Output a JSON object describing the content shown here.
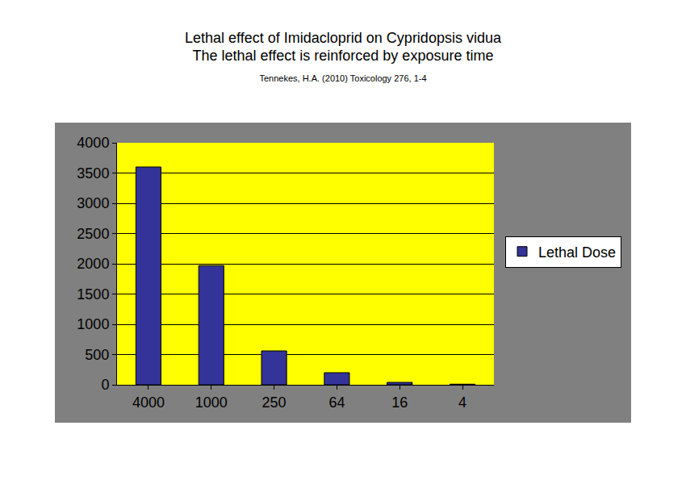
{
  "chart_data": {
    "type": "bar",
    "title": "Lethal effect of Imidacloprid on Cypridopsis vidua",
    "subtitle": "The lethal effect is reinforced by exposure time",
    "annotations": [
      "Tennekes, H.A. (2010) Toxicology 276, 1-4"
    ],
    "categories": [
      "4000",
      "1000",
      "250",
      "64",
      "16",
      "4"
    ],
    "series": [
      {
        "name": "Lethal Dose",
        "color": "#333399",
        "values": [
          3600,
          1970,
          560,
          200,
          40,
          10
        ]
      }
    ],
    "ylim": [
      0,
      4000
    ],
    "yticks": [
      0,
      500,
      1000,
      1500,
      2000,
      2500,
      3000,
      3500,
      4000
    ],
    "grid": true,
    "legend": "right"
  }
}
